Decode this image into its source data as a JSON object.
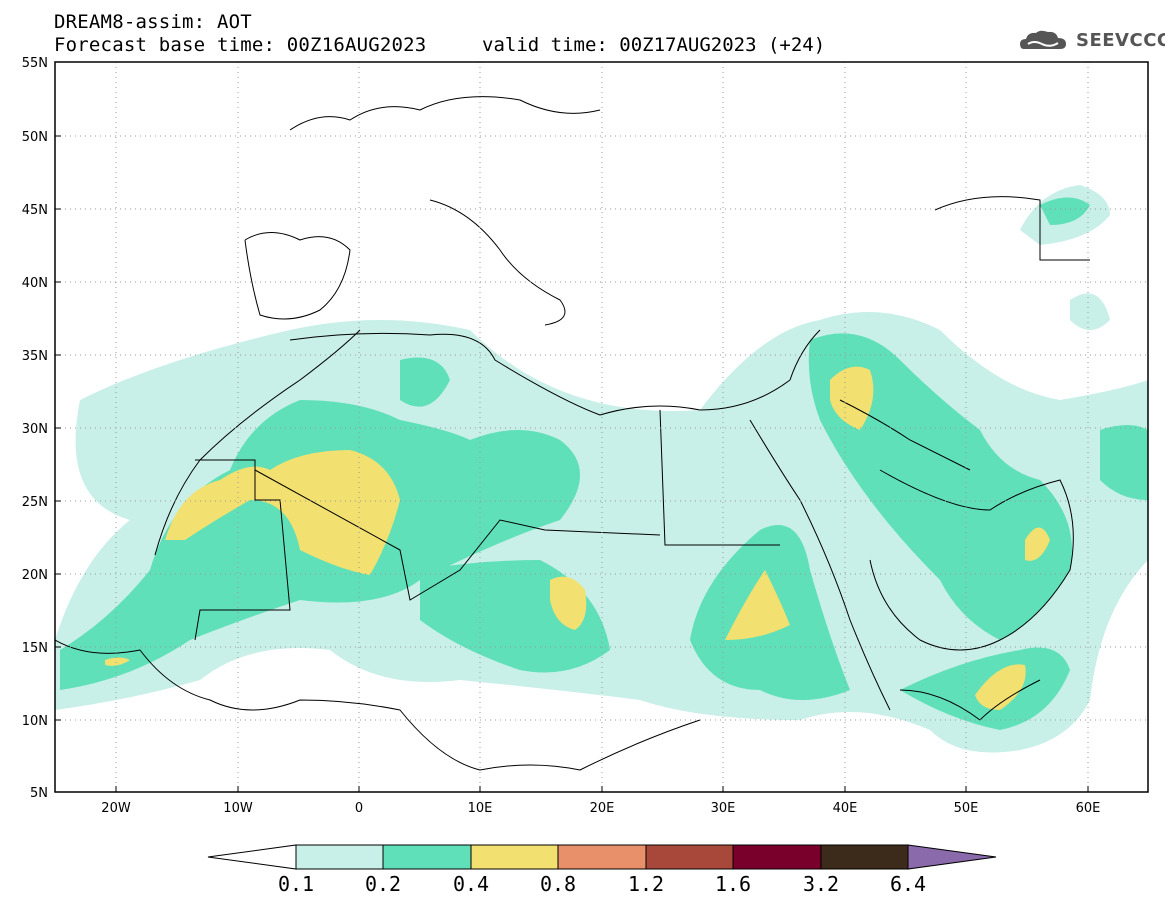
{
  "header": {
    "line1": "DREAM8-assim: AOT",
    "line2": "Forecast base time: 00Z16AUG2023",
    "valid": "valid time: 00Z17AUG2023 (+24)",
    "logo_text": "SEEVCCC"
  },
  "axes": {
    "lat_labels": [
      "55N",
      "50N",
      "45N",
      "40N",
      "35N",
      "30N",
      "25N",
      "20N",
      "15N",
      "10N",
      "5N"
    ],
    "lon_labels": [
      "20W",
      "10W",
      "0",
      "10E",
      "20E",
      "30E",
      "40E",
      "50E",
      "60E"
    ]
  },
  "colorbar": {
    "labels": [
      "0.1",
      "0.2",
      "0.4",
      "0.8",
      "1.2",
      "1.6",
      "3.2",
      "6.4"
    ],
    "colors": [
      "#ffffff",
      "#c8efe8",
      "#5fe0b8",
      "#f2e070",
      "#e8906a",
      "#a8483a",
      "#78002a",
      "#3c2a1a",
      "#8a6aaa"
    ]
  }
}
